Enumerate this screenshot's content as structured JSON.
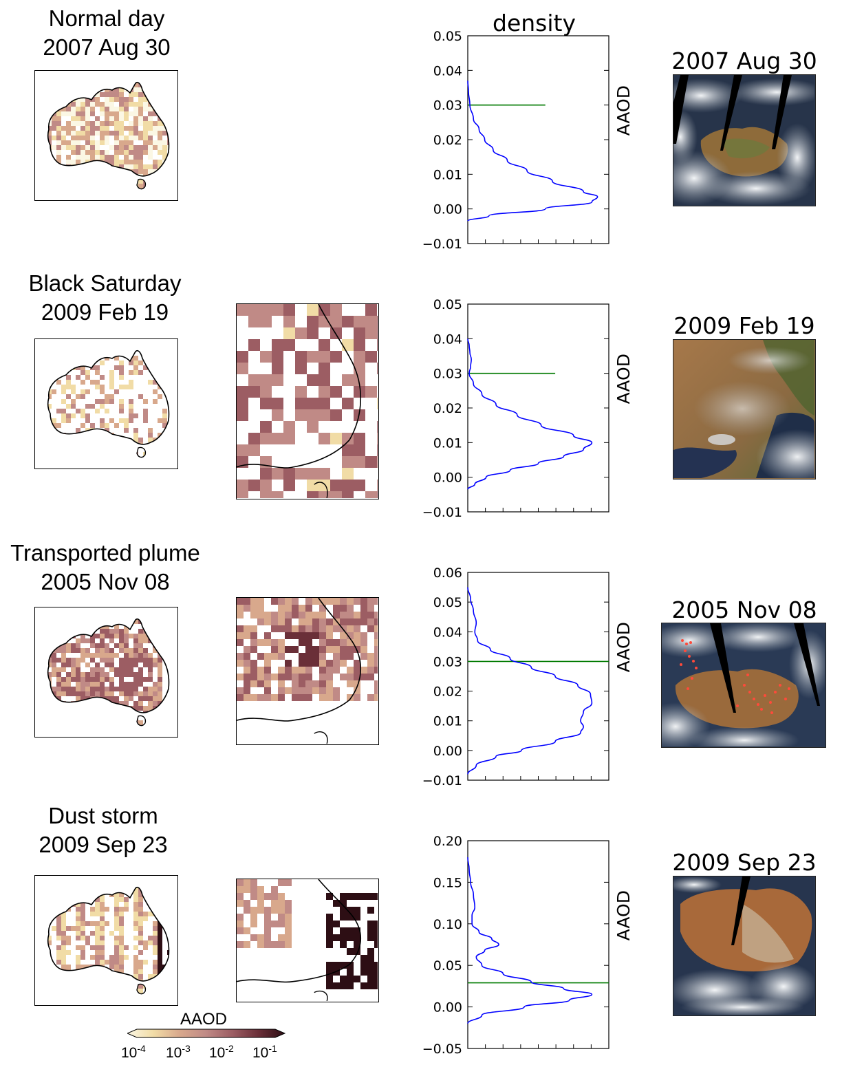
{
  "rows": [
    {
      "name": "Normal day",
      "date": "2007 Aug 30",
      "sat_title": "2007 Aug 30",
      "has_zoom": false,
      "cmap_hint": "light"
    },
    {
      "name": "Black Saturday",
      "date": "2009 Feb 19",
      "sat_title": "2009 Feb 19",
      "has_zoom": true,
      "cmap_hint": "sparse"
    },
    {
      "name": "Transported plume",
      "date": "2005 Nov 08",
      "sat_title": "2005 Nov 08",
      "has_zoom": true,
      "cmap_hint": "plume"
    },
    {
      "name": "Dust storm",
      "date": "2009 Sep 23",
      "sat_title": "2009 Sep 23",
      "has_zoom": true,
      "cmap_hint": "dust"
    }
  ],
  "density_title": "density",
  "colorbar": {
    "label": "AAOD",
    "ticks": [
      {
        "base": "10",
        "exp": "-4"
      },
      {
        "base": "10",
        "exp": "-3"
      },
      {
        "base": "10",
        "exp": "-2"
      },
      {
        "base": "10",
        "exp": "-1"
      }
    ],
    "colors": [
      "#fbf7e4",
      "#f1dca6",
      "#d8a88c",
      "#c08a86",
      "#9c5d63",
      "#6a2f38",
      "#2d0e14"
    ]
  },
  "chart_data": [
    {
      "type": "line",
      "ylabel": "AAOD",
      "ylim": [
        -0.01,
        0.05
      ],
      "yticks": [
        "0.05",
        "0.04",
        "0.03",
        "0.02",
        "0.01",
        "0.00",
        "−0.01"
      ],
      "yvals": [
        0.05,
        0.04,
        0.03,
        0.02,
        0.01,
        0.0,
        -0.01
      ],
      "xlim": [
        0,
        1
      ],
      "threshold": {
        "y": 0.03,
        "x_end": 0.55,
        "color": "#007a00"
      },
      "series": [
        {
          "color": "#0000ff",
          "y": [
            -0.0035,
            -0.002,
            0.0,
            0.002,
            0.0035,
            0.005,
            0.008,
            0.011,
            0.014,
            0.017,
            0.02,
            0.023,
            0.026,
            0.03,
            0.034,
            0.037
          ],
          "x": [
            0.0,
            0.15,
            0.55,
            0.88,
            0.92,
            0.82,
            0.6,
            0.42,
            0.28,
            0.18,
            0.12,
            0.08,
            0.04,
            0.015,
            0.005,
            0.0
          ]
        }
      ]
    },
    {
      "type": "line",
      "ylabel": "AAOD",
      "ylim": [
        -0.01,
        0.05
      ],
      "yticks": [
        "0.05",
        "0.04",
        "0.03",
        "0.02",
        "0.01",
        "0.00",
        "−0.01"
      ],
      "yvals": [
        0.05,
        0.04,
        0.03,
        0.02,
        0.01,
        0.0,
        -0.01
      ],
      "xlim": [
        0,
        1
      ],
      "threshold": {
        "y": 0.03,
        "x_end": 0.62,
        "color": "#007a00"
      },
      "series": [
        {
          "color": "#0000ff",
          "y": [
            -0.0035,
            -0.002,
            0.0,
            0.002,
            0.004,
            0.006,
            0.008,
            0.01,
            0.012,
            0.015,
            0.018,
            0.021,
            0.024,
            0.027,
            0.03,
            0.032,
            0.034,
            0.036,
            0.038,
            0.04
          ],
          "x": [
            0.0,
            0.05,
            0.13,
            0.3,
            0.5,
            0.68,
            0.82,
            0.88,
            0.75,
            0.52,
            0.35,
            0.2,
            0.1,
            0.04,
            0.01,
            0.02,
            0.025,
            0.015,
            0.01,
            0.0
          ]
        }
      ]
    },
    {
      "type": "line",
      "ylabel": "AAOD",
      "ylim": [
        -0.01,
        0.06
      ],
      "yticks": [
        "0.06",
        "0.05",
        "0.04",
        "0.03",
        "0.02",
        "0.01",
        "0.00",
        "−0.01"
      ],
      "yvals": [
        0.06,
        0.05,
        0.04,
        0.03,
        0.02,
        0.01,
        0.0,
        -0.01
      ],
      "xlim": [
        0,
        1
      ],
      "threshold": {
        "y": 0.03,
        "x_end": 1.0,
        "color": "#007a00"
      },
      "series": [
        {
          "color": "#0000ff",
          "y": [
            -0.008,
            -0.005,
            -0.002,
            0.0,
            0.003,
            0.006,
            0.008,
            0.01,
            0.013,
            0.016,
            0.019,
            0.022,
            0.025,
            0.028,
            0.031,
            0.034,
            0.037,
            0.04,
            0.043,
            0.047,
            0.051,
            0.055
          ],
          "x": [
            0.0,
            0.06,
            0.2,
            0.38,
            0.62,
            0.8,
            0.82,
            0.8,
            0.82,
            0.88,
            0.87,
            0.78,
            0.62,
            0.45,
            0.3,
            0.16,
            0.07,
            0.05,
            0.06,
            0.04,
            0.02,
            0.0
          ]
        }
      ]
    },
    {
      "type": "line",
      "ylabel": "AAOD",
      "ylim": [
        -0.05,
        0.2
      ],
      "yticks": [
        "0.20",
        "0.15",
        "0.10",
        "0.05",
        "0.00",
        "−0.05"
      ],
      "yvals": [
        0.2,
        0.15,
        0.1,
        0.05,
        0.0,
        -0.05
      ],
      "xlim": [
        0,
        1
      ],
      "threshold": {
        "y": 0.029,
        "x_end": 1.0,
        "color": "#007a00"
      },
      "series": [
        {
          "color": "#0000ff",
          "y": [
            -0.02,
            -0.01,
            0.0,
            0.008,
            0.015,
            0.022,
            0.03,
            0.04,
            0.05,
            0.06,
            0.068,
            0.075,
            0.082,
            0.09,
            0.1,
            0.11,
            0.12,
            0.135,
            0.15,
            0.165,
            0.18
          ],
          "x": [
            0.0,
            0.1,
            0.4,
            0.72,
            0.88,
            0.68,
            0.45,
            0.25,
            0.1,
            0.06,
            0.12,
            0.22,
            0.17,
            0.08,
            0.03,
            0.03,
            0.05,
            0.04,
            0.02,
            0.01,
            0.0
          ]
        }
      ]
    }
  ]
}
